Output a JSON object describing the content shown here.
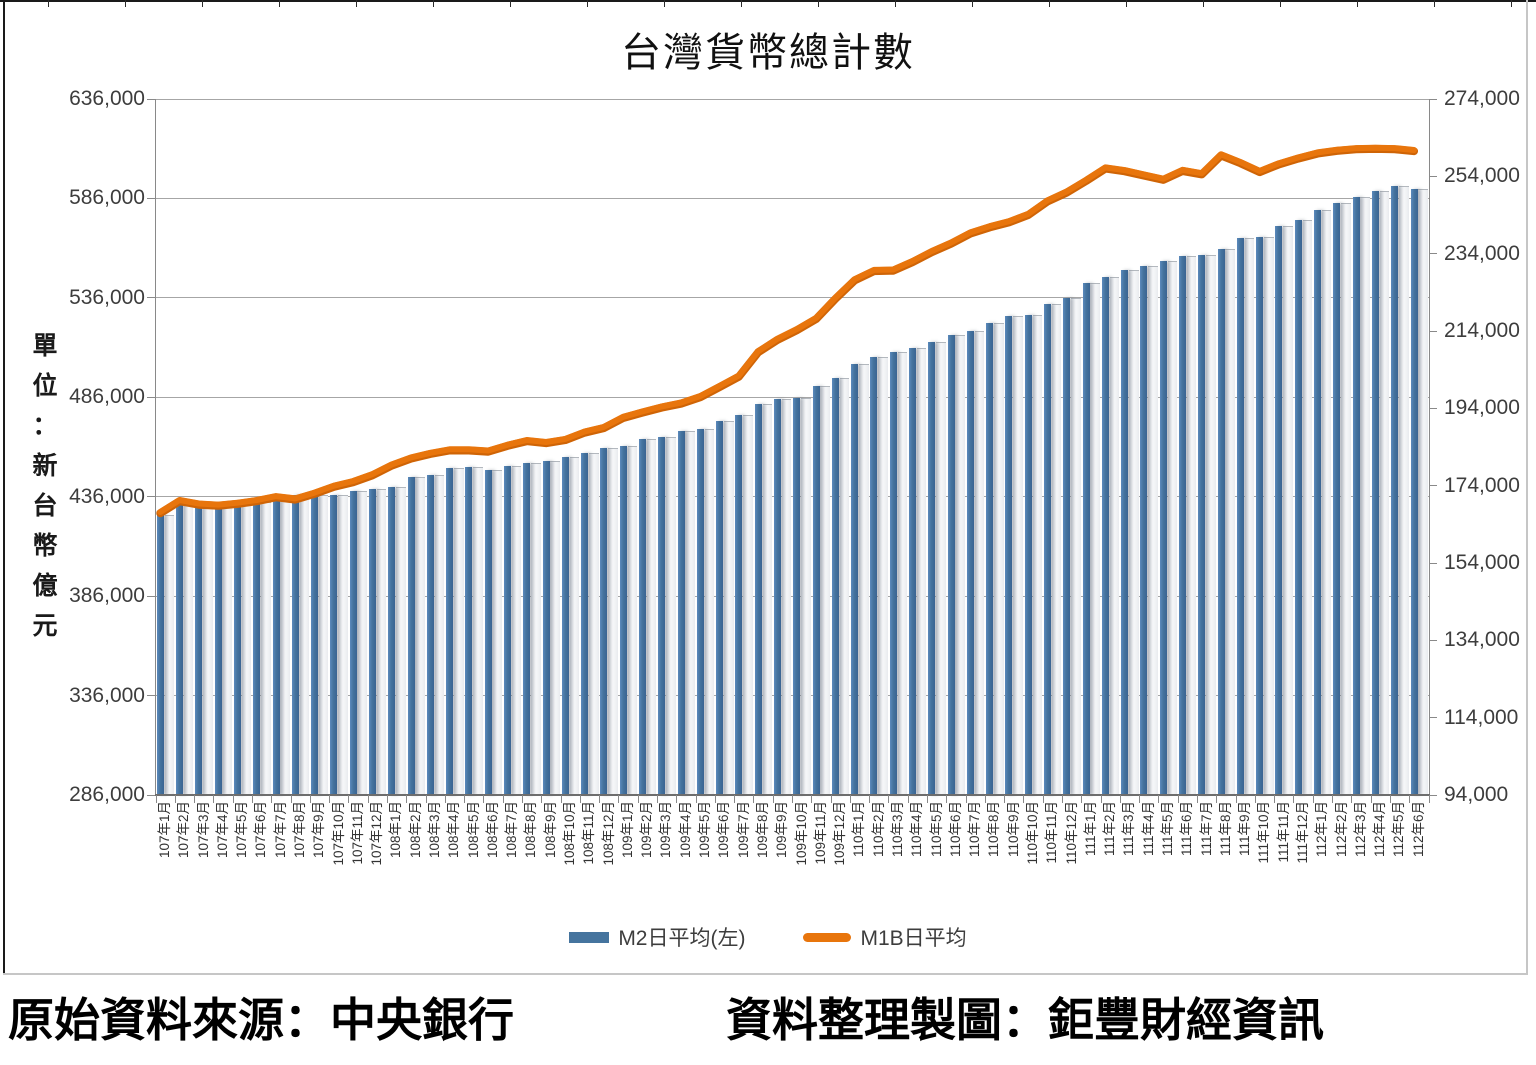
{
  "title": "台灣貨幣總計數",
  "unit_label": "單位：新台幣億元",
  "y_axis_left": {
    "tick_labels": [
      "636,000",
      "586,000",
      "536,000",
      "486,000",
      "436,000",
      "386,000",
      "336,000",
      "286,000"
    ],
    "min": 286000,
    "max": 636000,
    "step": 50000
  },
  "y_axis_right": {
    "tick_labels": [
      "274,000",
      "254,000",
      "234,000",
      "214,000",
      "194,000",
      "174,000",
      "154,000",
      "134,000",
      "114,000",
      "94,000"
    ],
    "min": 94000,
    "max": 274000,
    "step": 20000
  },
  "legend": {
    "m2_label": "M2日平均(左)",
    "m1b_label": "M1B日平均"
  },
  "colors": {
    "bar_blue": "#45749e",
    "bar_light": "#eef0f3",
    "line_orange": "#e8750c",
    "line_orange_dark": "#cf6406",
    "gridline": "#a6a6a6"
  },
  "caption": {
    "source": "原始資料來源：中央銀行",
    "credit": "資料整理製圖：鉅豐財經資訊"
  },
  "chart_data": {
    "type": "bar",
    "subtype": "bar+line combo, dual axis",
    "title": "台灣貨幣總計數",
    "ylabel_left": "單位：新台幣億元",
    "left_ylim": [
      286000,
      636000
    ],
    "right_ylim": [
      94000,
      274000
    ],
    "grid": "horizontal, every 50000 (left axis)",
    "legend_position": "bottom center",
    "categories": [
      "107年1月",
      "107年2月",
      "107年3月",
      "107年4月",
      "107年5月",
      "107年6月",
      "107年7月",
      "107年8月",
      "107年9月",
      "107年10月",
      "107年11月",
      "107年12月",
      "108年1月",
      "108年2月",
      "108年3月",
      "108年4月",
      "108年5月",
      "108年6月",
      "108年7月",
      "108年8月",
      "108年9月",
      "108年10月",
      "108年11月",
      "108年12月",
      "109年1月",
      "109年2月",
      "109年3月",
      "109年4月",
      "109年5月",
      "109年6月",
      "109年7月",
      "109年8月",
      "109年9月",
      "109年10月",
      "109年11月",
      "109年12月",
      "110年1月",
      "110年2月",
      "110年3月",
      "110年4月",
      "110年5月",
      "110年6月",
      "110年7月",
      "110年8月",
      "110年9月",
      "110年10月",
      "110年11月",
      "110年12月",
      "111年1月",
      "111年2月",
      "111年3月",
      "111年4月",
      "111年5月",
      "111年6月",
      "111年7月",
      "111年8月",
      "111年9月",
      "111年10月",
      "111年11月",
      "111年12月",
      "112年1月",
      "112年2月",
      "112年3月",
      "112年4月",
      "112年5月",
      "112年6月"
    ],
    "series": [
      {
        "name": "M2日平均(左)",
        "type": "bar",
        "axis": "left",
        "color": "#45749e",
        "values": [
          427000,
          433000,
          432500,
          432500,
          433000,
          433500,
          435000,
          437000,
          437000,
          436800,
          439000,
          439700,
          441000,
          446000,
          447000,
          450300,
          450700,
          449500,
          451700,
          452800,
          454000,
          456200,
          457900,
          460400,
          461600,
          465200,
          465800,
          469200,
          470000,
          473900,
          477200,
          482600,
          485100,
          485600,
          491500,
          495700,
          502700,
          506500,
          508700,
          510900,
          513800,
          517200,
          519300,
          523500,
          526900,
          527400,
          532800,
          535800,
          543300,
          546300,
          550100,
          552200,
          554700,
          557200,
          557700,
          560600,
          566100,
          566500,
          571900,
          575000,
          580000,
          583800,
          586700,
          589500,
          592100,
          590900
        ]
      },
      {
        "name": "M1B日平均",
        "type": "line",
        "axis": "right",
        "color": "#e8750c",
        "values": [
          167200,
          170300,
          169400,
          169100,
          169600,
          170300,
          171300,
          170700,
          172200,
          174000,
          175200,
          177000,
          179500,
          181300,
          182500,
          183400,
          183400,
          183100,
          184600,
          185800,
          185300,
          186100,
          188000,
          189200,
          191800,
          193200,
          194500,
          195500,
          197200,
          199800,
          202500,
          208800,
          212000,
          214500,
          217400,
          222600,
          227400,
          229800,
          229900,
          232100,
          234700,
          236900,
          239500,
          241100,
          242400,
          244300,
          247800,
          250100,
          253100,
          256300,
          255600,
          254500,
          253400,
          255700,
          254800,
          259700,
          257700,
          255400,
          257400,
          258900,
          260200,
          260900,
          261300,
          261400,
          261300,
          260800
        ]
      }
    ]
  }
}
